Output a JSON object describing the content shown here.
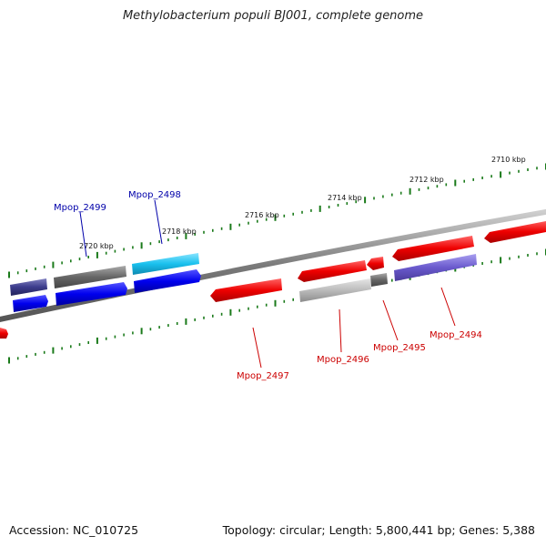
{
  "title": "Methylobacterium populi BJ001, complete genome",
  "footer": {
    "accession": "Accession: NC_010725",
    "topology": "Topology: circular; Length: 5,800,441 bp; Genes: 5,388"
  },
  "ticks": [
    {
      "label": "2710 kbp"
    },
    {
      "label": "2712 kbp"
    },
    {
      "label": "2714 kbp"
    },
    {
      "label": "2716 kbp"
    },
    {
      "label": "2718 kbp"
    },
    {
      "label": "2720 kbp"
    }
  ],
  "genes": [
    {
      "label": "Mpop_2499",
      "color": "#0000aa"
    },
    {
      "label": "Mpop_2498",
      "color": "#0000aa"
    },
    {
      "label": "Mpop_2497",
      "color": "#cc0000"
    },
    {
      "label": "Mpop_2496",
      "color": "#cc0000"
    },
    {
      "label": "Mpop_2495",
      "color": "#cc0000"
    },
    {
      "label": "Mpop_2494",
      "color": "#cc0000"
    }
  ],
  "colors": {
    "backbone": "#808080",
    "tick": "#1a7a1a",
    "red": "#ee0000",
    "blue": "#0000ee",
    "cyan": "#19c0ee",
    "navy": "#3c3c8c",
    "darkgray": "#666666",
    "lightgray": "#bbbbbb",
    "lavender": "#6a5acd"
  }
}
